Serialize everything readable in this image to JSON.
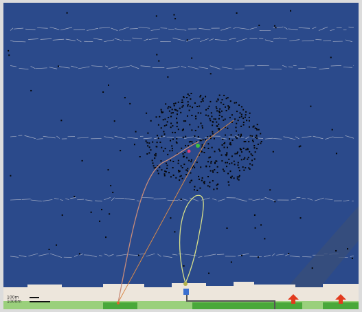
{
  "scale_labels": [
    "100m",
    "1000m"
  ]
}
